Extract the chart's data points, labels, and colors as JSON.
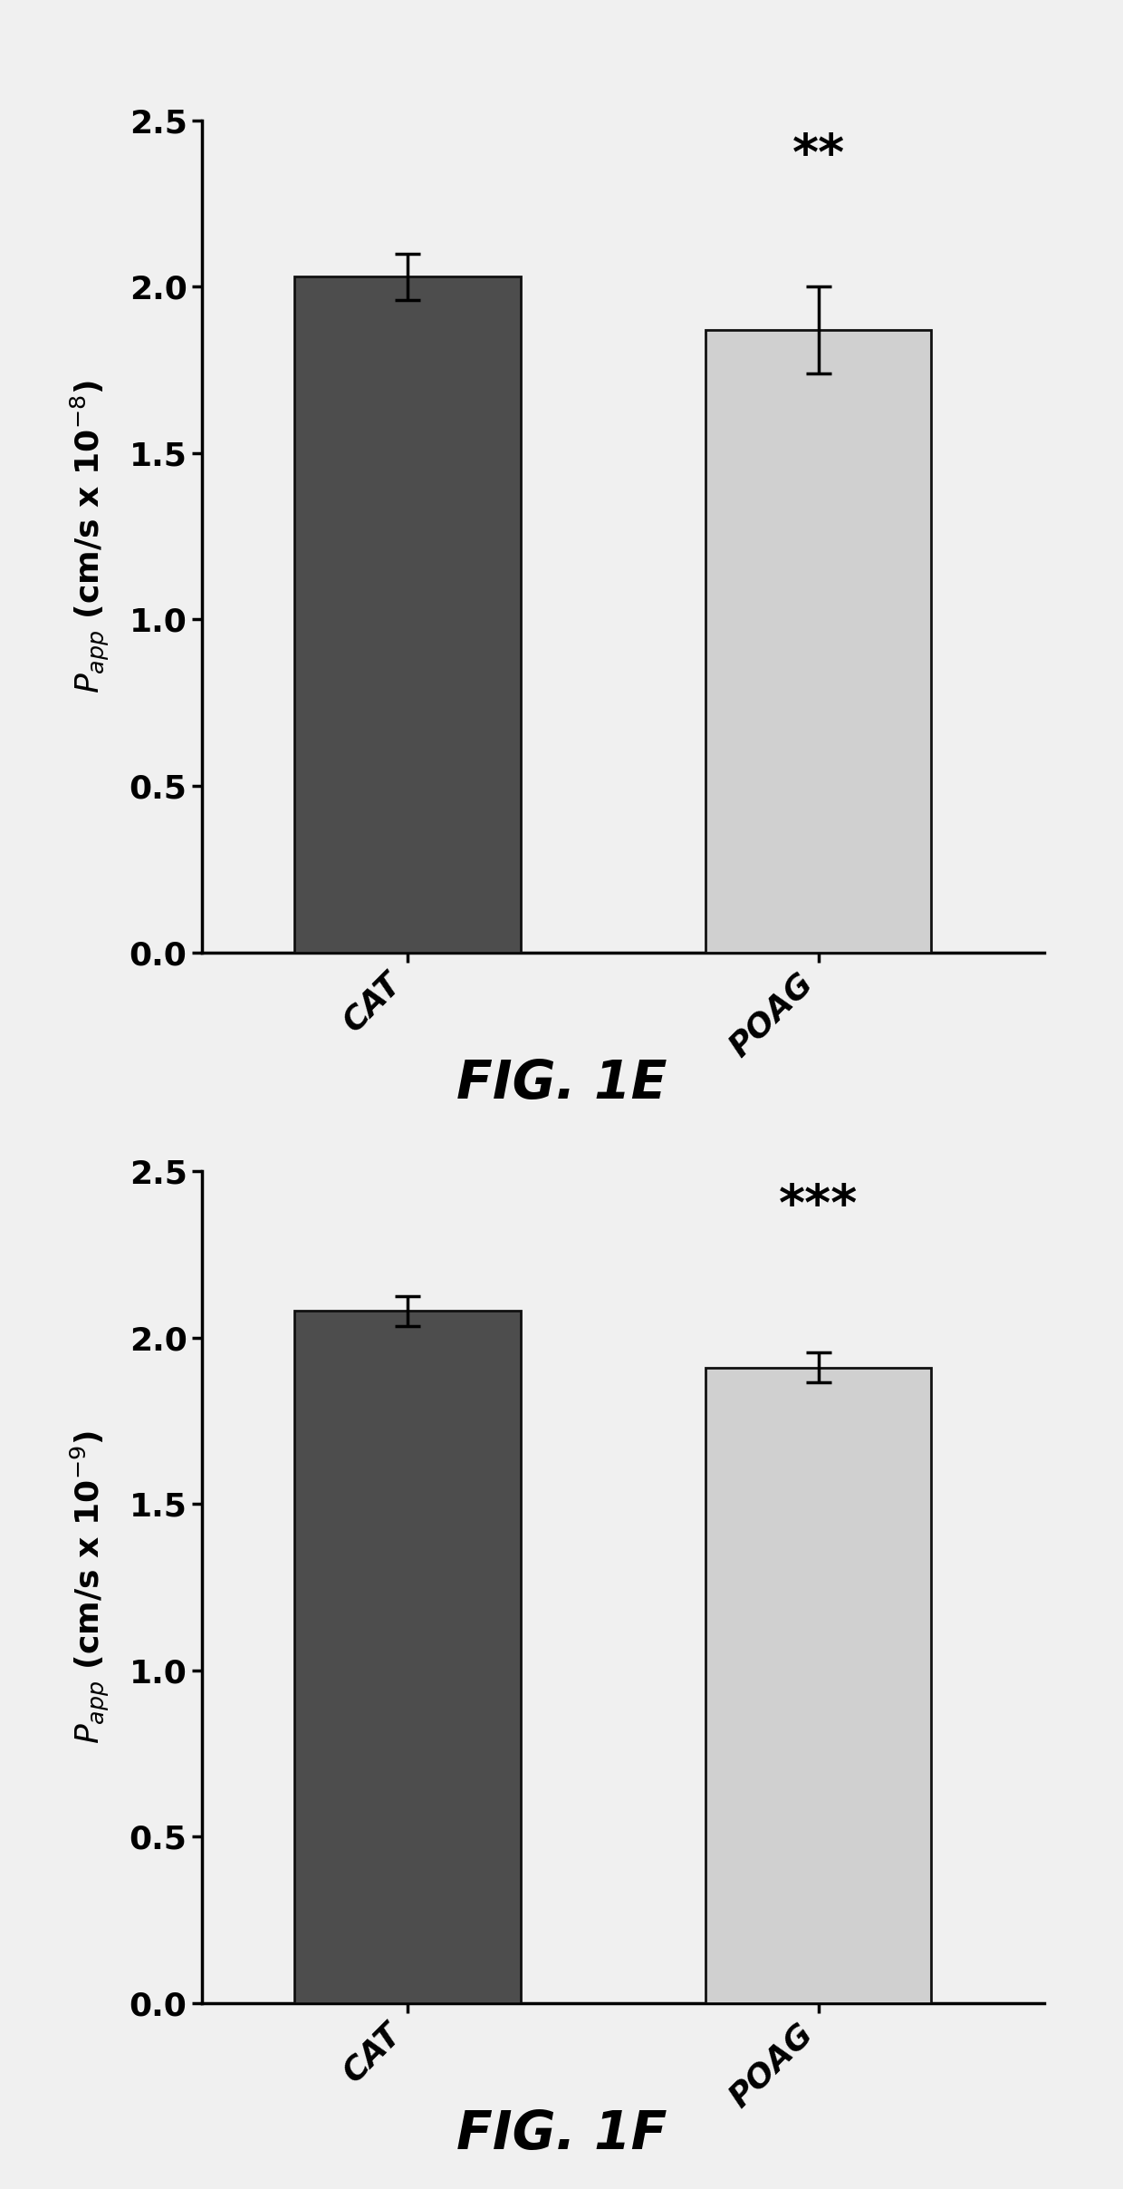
{
  "fig1e": {
    "categories": [
      "CAT",
      "POAG"
    ],
    "values": [
      2.03,
      1.87
    ],
    "errors": [
      0.07,
      0.13
    ],
    "bar_colors": [
      "#4d4d4d",
      "#d0d0d0"
    ],
    "bar_edge_colors": [
      "#111111",
      "#111111"
    ],
    "ylim": [
      0,
      2.5
    ],
    "yticks": [
      0.0,
      0.5,
      1.0,
      1.5,
      2.0,
      2.5
    ],
    "ylabel": "$\\mathit{P}_{app}$ (cm/s x 10$^{-8}$)",
    "significance": "**",
    "sig_x": 1,
    "sig_y": 2.32,
    "figure_label": "FIG. 1E"
  },
  "fig1f": {
    "categories": [
      "CAT",
      "POAG"
    ],
    "values": [
      2.08,
      1.91
    ],
    "errors": [
      0.045,
      0.045
    ],
    "bar_colors": [
      "#4d4d4d",
      "#d0d0d0"
    ],
    "bar_edge_colors": [
      "#111111",
      "#111111"
    ],
    "ylim": [
      0,
      2.5
    ],
    "yticks": [
      0.0,
      0.5,
      1.0,
      1.5,
      2.0,
      2.5
    ],
    "ylabel": "$\\mathit{P}_{app}$ (cm/s x 10$^{-9}$)",
    "significance": "***",
    "sig_x": 1,
    "sig_y": 2.32,
    "figure_label": "FIG. 1F"
  },
  "background_color": "#f0f0f0",
  "plot_bg_color": "#f0f0f0",
  "bar_width": 0.55,
  "capsize": 10,
  "tick_fontsize": 26,
  "label_fontsize": 26,
  "sig_fontsize": 40,
  "figlabel_fontsize": 42,
  "cat_fontsize": 26,
  "x_positions": [
    0.5,
    1.5
  ],
  "xlim": [
    0.0,
    2.05
  ]
}
